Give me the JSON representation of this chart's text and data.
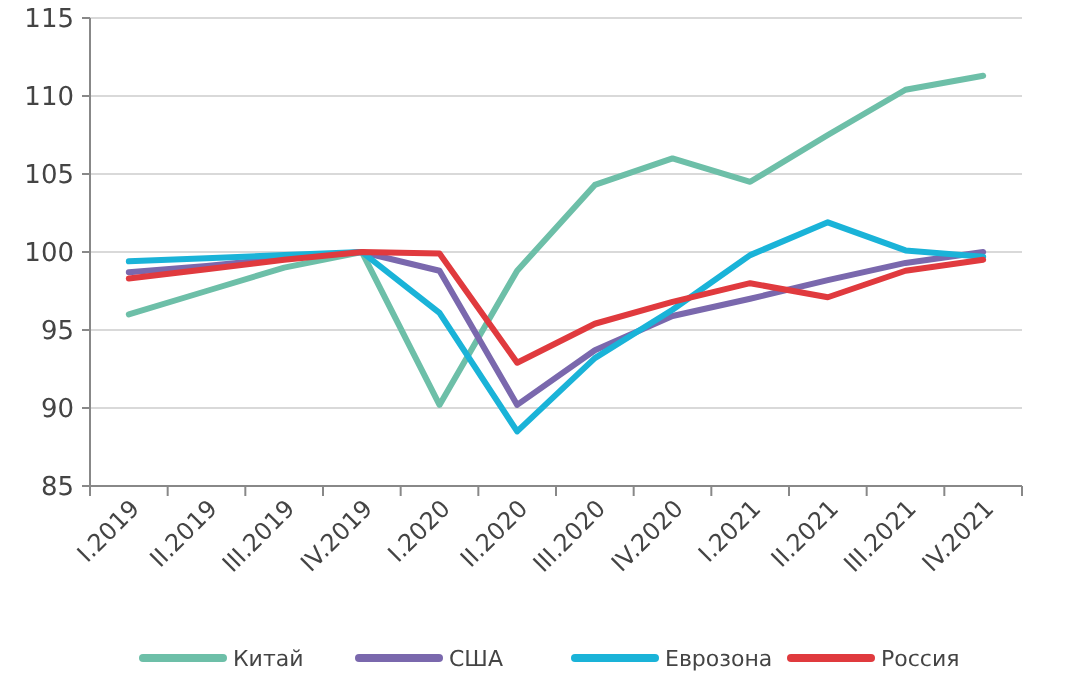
{
  "chart_data": {
    "type": "line",
    "categories": [
      "I.2019",
      "II.2019",
      "III.2019",
      "IV.2019",
      "I.2020",
      "II.2020",
      "III.2020",
      "IV.2020",
      "I.2021",
      "II.2021",
      "III.2021",
      "IV.2021"
    ],
    "ylim": [
      85,
      115
    ],
    "yticks": [
      85,
      90,
      95,
      100,
      105,
      110,
      115
    ],
    "grid": "y",
    "legend": "bottom",
    "marker": "none",
    "line_style": "solid",
    "series": [
      {
        "name": "Китай",
        "color": "#6dbfa8",
        "values": [
          96,
          97.5,
          99,
          100,
          90.2,
          98.8,
          104.3,
          106,
          104.5,
          107.5,
          110.4,
          111.3
        ]
      },
      {
        "name": "США",
        "color": "#7a68ad",
        "values": [
          98.7,
          99.1,
          99.6,
          100,
          98.8,
          90.2,
          93.7,
          95.9,
          97,
          98.2,
          99.3,
          100
        ]
      },
      {
        "name": "Еврозона",
        "color": "#1ab3d8",
        "values": [
          99.4,
          99.6,
          99.8,
          100,
          96.1,
          88.5,
          93.2,
          96.3,
          99.8,
          101.9,
          100.1,
          99.7
        ]
      },
      {
        "name": "Россия",
        "color": "#e03a3e",
        "values": [
          98.3,
          98.9,
          99.5,
          100,
          99.9,
          92.9,
          95.4,
          96.8,
          98,
          97.1,
          98.8,
          99.5
        ]
      }
    ]
  }
}
